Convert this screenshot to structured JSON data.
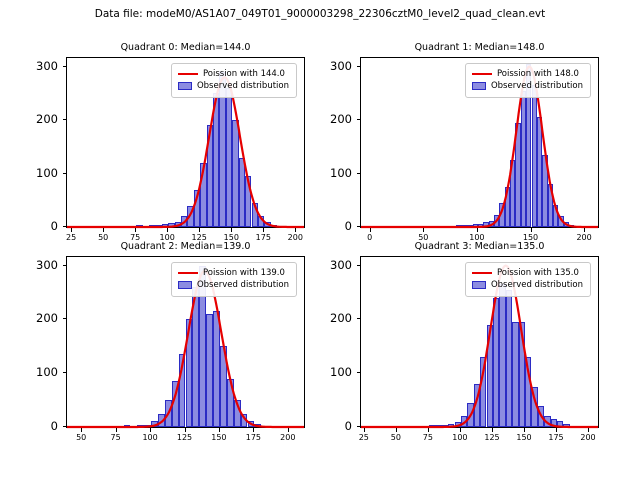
{
  "figure_title": "Data file: modeM0/AS1A07_049T01_9000003298_22306cztM0_level2_quad_clean.evt",
  "colors": {
    "line": "#e60000",
    "bar_fill": "#6060d6",
    "bar_edge": "#2b2bc4",
    "axes": "#000000"
  },
  "chart_data": [
    {
      "type": "bar",
      "title": "Quadrant 0: Median=144.0",
      "legend": [
        "Poission with 144.0",
        "Observed distribution"
      ],
      "xlim": [
        21,
        206
      ],
      "ylim": [
        0,
        316
      ],
      "x_ticks": [
        25,
        50,
        75,
        100,
        125,
        150,
        175,
        200
      ],
      "y_ticks": [
        0,
        100,
        200,
        300
      ],
      "bins": {
        "start": 25,
        "width": 5,
        "counts": [
          2,
          1,
          1,
          0,
          2,
          1,
          1,
          2,
          1,
          2,
          3,
          2,
          3,
          3,
          5,
          8,
          10,
          20,
          40,
          70,
          120,
          190,
          250,
          290,
          260,
          200,
          130,
          95,
          45,
          20,
          9,
          4,
          2,
          1,
          1,
          0
        ]
      },
      "curve": {
        "shape": "poisson-approx",
        "mu": 144,
        "sigma": 12,
        "peak": 280
      }
    },
    {
      "type": "bar",
      "title": "Quadrant 1: Median=148.0",
      "legend": [
        "Poission with 148.0",
        "Observed distribution"
      ],
      "xlim": [
        -9,
        212
      ],
      "ylim": [
        0,
        316
      ],
      "x_ticks": [
        0,
        50,
        100,
        150,
        200
      ],
      "y_ticks": [
        0,
        100,
        200,
        300
      ],
      "bins": {
        "start": 25,
        "width": 5,
        "counts": [
          1,
          1,
          0,
          1,
          1,
          2,
          1,
          1,
          2,
          2,
          2,
          3,
          3,
          4,
          5,
          6,
          9,
          12,
          22,
          45,
          75,
          125,
          195,
          255,
          305,
          265,
          205,
          135,
          80,
          42,
          20,
          9,
          4,
          2,
          1,
          0
        ]
      },
      "curve": {
        "shape": "poisson-approx",
        "mu": 148,
        "sigma": 12,
        "peak": 300
      }
    },
    {
      "type": "bar",
      "title": "Quadrant 2: Median=139.0",
      "legend": [
        "Poission with 139.0",
        "Observed distribution"
      ],
      "xlim": [
        39,
        211
      ],
      "ylim": [
        0,
        316
      ],
      "x_ticks": [
        50,
        75,
        100,
        125,
        150,
        175,
        200
      ],
      "y_ticks": [
        0,
        100,
        200,
        300
      ],
      "bins": {
        "start": 40,
        "width": 5,
        "counts": [
          1,
          1,
          2,
          1,
          1,
          2,
          1,
          2,
          3,
          2,
          3,
          4,
          12,
          25,
          50,
          85,
          135,
          200,
          260,
          300,
          210,
          215,
          150,
          90,
          50,
          25,
          12,
          5,
          2,
          1,
          1,
          0,
          0
        ]
      },
      "curve": {
        "shape": "poisson-approx",
        "mu": 139,
        "sigma": 12,
        "peak": 290
      }
    },
    {
      "type": "bar",
      "title": "Quadrant 3: Median=135.0",
      "legend": [
        "Poission with 135.0",
        "Observed distribution"
      ],
      "xlim": [
        22,
        207
      ],
      "ylim": [
        0,
        316
      ],
      "x_ticks": [
        25,
        50,
        75,
        100,
        125,
        150,
        175,
        200
      ],
      "y_ticks": [
        0,
        100,
        200,
        300
      ],
      "bins": {
        "start": 25,
        "width": 5,
        "counts": [
          1,
          0,
          1,
          1,
          2,
          1,
          1,
          2,
          1,
          2,
          3,
          3,
          4,
          6,
          10,
          20,
          45,
          80,
          130,
          190,
          240,
          265,
          255,
          195,
          195,
          130,
          75,
          40,
          20,
          15,
          12,
          5,
          2,
          1,
          0,
          0
        ]
      },
      "curve": {
        "shape": "poisson-approx",
        "mu": 135,
        "sigma": 12,
        "peak": 300
      }
    }
  ]
}
